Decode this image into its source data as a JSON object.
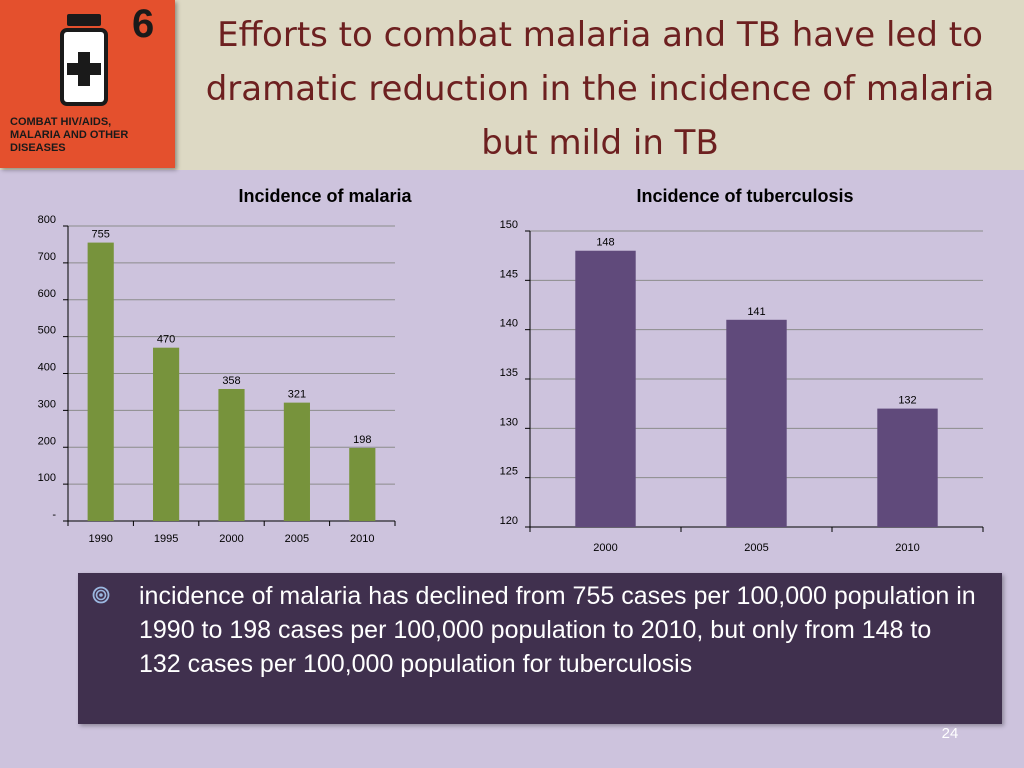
{
  "logo": {
    "number": "6",
    "caption": "COMBAT HIV/AIDS,\nMALARIA AND OTHER\nDISEASES",
    "icon": "medicine-bottle-icon",
    "color": "#e4502d"
  },
  "slide": {
    "title": "Efforts to combat malaria and TB have led to dramatic reduction in the incidence of malaria but mild in TB",
    "note": "incidence of malaria has declined from 755 cases per 100,000 population in 1990 to 198 cases per 100,000 population to 2010, but only from 148 to 132 cases per 100,000 population for tuberculosis",
    "bullet_icon": "target-bullet-icon",
    "page_number": "24"
  },
  "chart_data": [
    {
      "type": "bar",
      "title": "Incidence of malaria",
      "categories": [
        "1990",
        "1995",
        "2000",
        "2005",
        "2010"
      ],
      "values": [
        755,
        470,
        358,
        321,
        198
      ],
      "ylim": [
        0,
        800
      ],
      "yticks": [
        0,
        100,
        200,
        300,
        400,
        500,
        600,
        700,
        800
      ],
      "ytick_labels": [
        "-",
        "100",
        "200",
        "300",
        "400",
        "500",
        "600",
        "700",
        "800"
      ],
      "grid": true,
      "color": "#77933c"
    },
    {
      "type": "bar",
      "title": "Incidence of tuberculosis",
      "categories": [
        "2000",
        "2005",
        "2010"
      ],
      "values": [
        148,
        141,
        132
      ],
      "ylim": [
        120,
        150
      ],
      "yticks": [
        120,
        125,
        130,
        135,
        140,
        145,
        150
      ],
      "ytick_labels": [
        "120",
        "125",
        "130",
        "135",
        "140",
        "145",
        "150"
      ],
      "grid": true,
      "color": "#604a7b"
    }
  ]
}
